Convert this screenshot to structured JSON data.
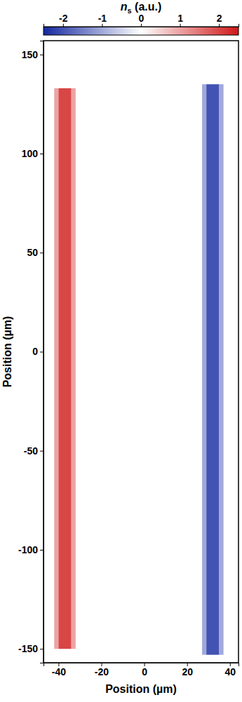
{
  "chart_data": {
    "type": "heatmap",
    "x_label": "Position (µm)",
    "y_label": "Position (µm)",
    "xlim": [
      -47,
      44
    ],
    "xticks": [
      -40,
      -20,
      0,
      20,
      40
    ],
    "ylim": [
      -157,
      157
    ],
    "yticks": [
      -150,
      -100,
      -50,
      0,
      50,
      100,
      150
    ],
    "cells": [
      {
        "x0": -47,
        "x1": 44,
        "y0": -157,
        "y1": 157,
        "value": 0
      },
      {
        "x0": -42,
        "x1": -40,
        "y0": -150,
        "y1": 133,
        "value": 1
      },
      {
        "x0": -40,
        "x1": -34,
        "y0": -150,
        "y1": 133,
        "value": 2
      },
      {
        "x0": -34,
        "x1": -32,
        "y0": -150,
        "y1": 133,
        "value": 1
      },
      {
        "x0": 27,
        "x1": 29,
        "y0": -153,
        "y1": 135,
        "value": -1
      },
      {
        "x0": 29,
        "x1": 35,
        "y0": -153,
        "y1": 135,
        "value": -2
      },
      {
        "x0": 35,
        "x1": 37,
        "y0": -153,
        "y1": 135,
        "value": -1
      }
    ],
    "colorbar": {
      "label": "ns (a.u.)",
      "range": [
        -2.5,
        2.5
      ],
      "ticks": [
        -2,
        -1,
        0,
        1,
        2
      ],
      "colors": [
        "#1428a0",
        "#ffffff",
        "#d01818"
      ]
    }
  }
}
